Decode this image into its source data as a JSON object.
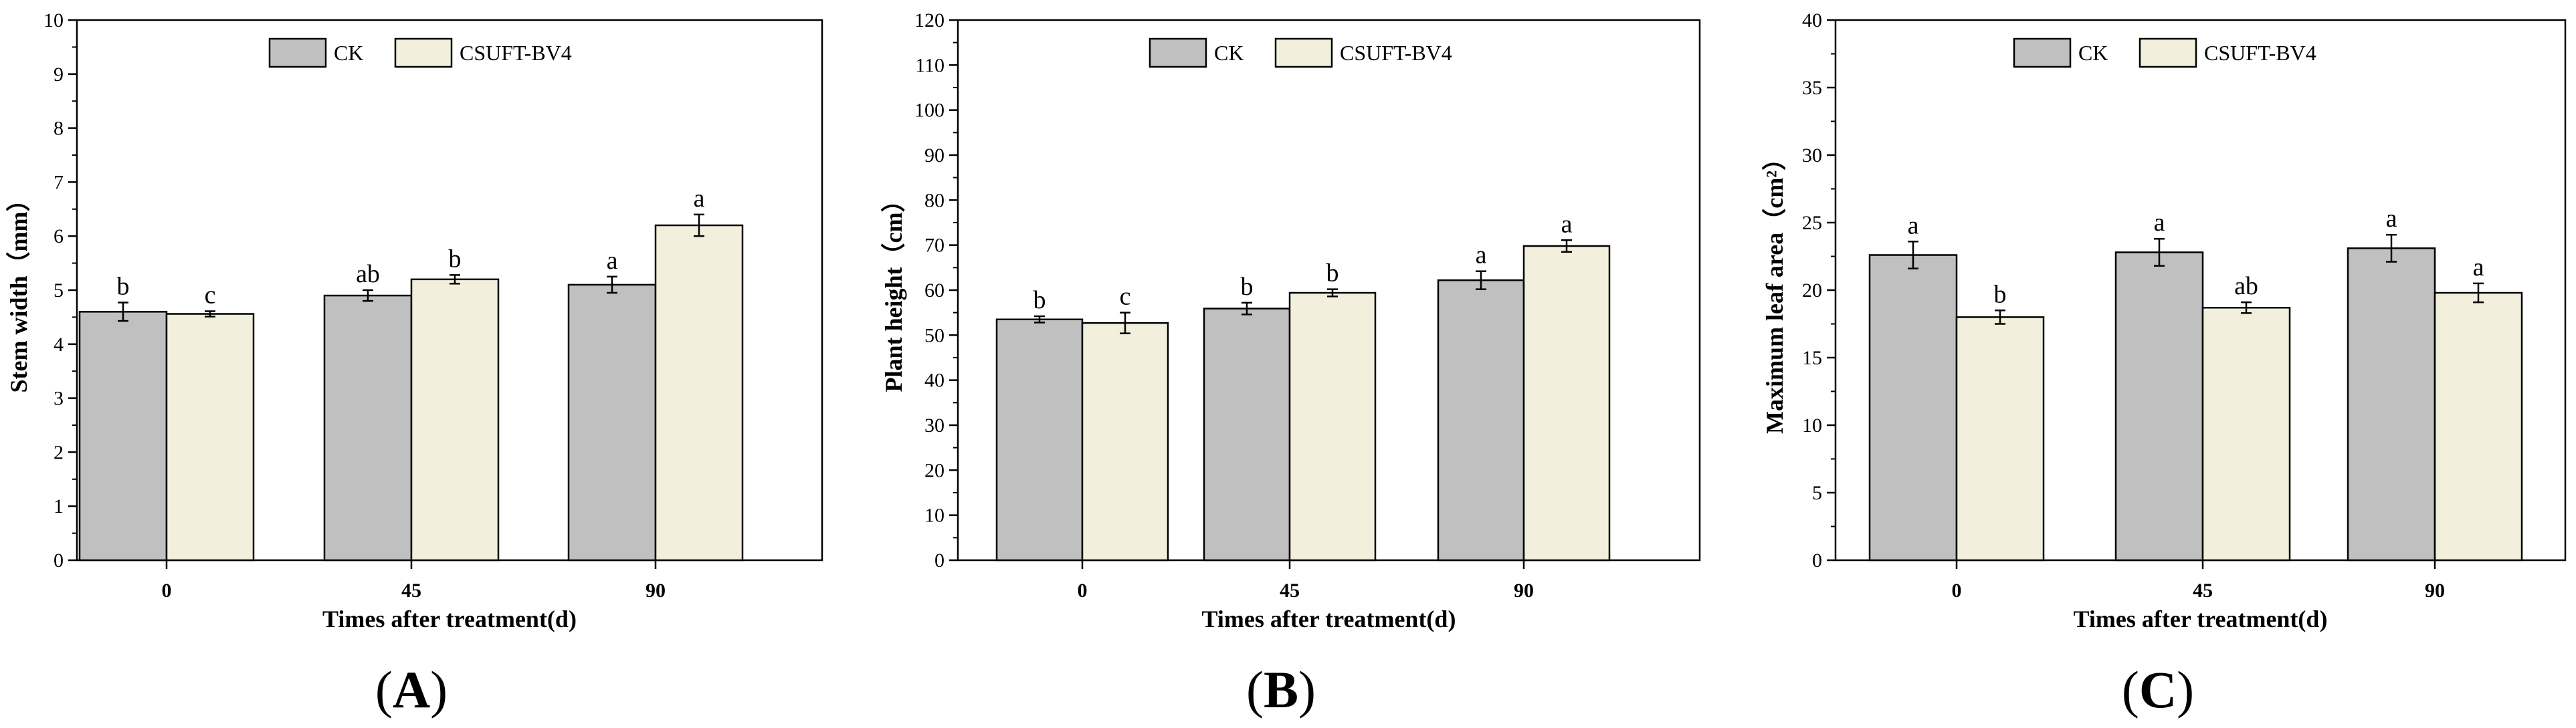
{
  "colors": {
    "ck": "#c0c0c0",
    "bv4": "#f2efdd",
    "stroke": "#000000"
  },
  "legend_labels": [
    "CK",
    "CSUFT-BV4"
  ],
  "panels": [
    {
      "label": "A",
      "chart_data": {
        "type": "bar",
        "categories": [
          "0",
          "45",
          "90"
        ],
        "xlabel": "Times after treatment(d)",
        "ylabel": "Stem width（mm）",
        "ylim": [
          0,
          10
        ],
        "yticks": [
          0,
          1,
          2,
          3,
          4,
          5,
          6,
          7,
          8,
          9,
          10
        ],
        "legend_position": "top-center",
        "series": [
          {
            "name": "CK",
            "values": [
              4.6,
              4.9,
              5.1
            ],
            "errors": [
              0.17,
              0.1,
              0.15
            ],
            "letters": [
              "b",
              "ab",
              "a"
            ]
          },
          {
            "name": "CSUFT-BV4",
            "values": [
              4.56,
              5.2,
              6.2
            ],
            "errors": [
              0.05,
              0.08,
              0.2
            ],
            "letters": [
              "c",
              "b",
              "a"
            ]
          }
        ]
      }
    },
    {
      "label": "B",
      "chart_data": {
        "type": "bar",
        "categories": [
          "0",
          "45",
          "90"
        ],
        "xlabel": "Times after treatment(d)",
        "ylabel": "Plant height（cm）",
        "ylim": [
          0,
          120
        ],
        "yticks": [
          0,
          10,
          20,
          30,
          40,
          50,
          60,
          70,
          80,
          90,
          100,
          110,
          120
        ],
        "legend_position": "top-center",
        "series": [
          {
            "name": "CK",
            "values": [
              53.5,
              55.9,
              62.2
            ],
            "errors": [
              0.7,
              1.3,
              2.0
            ],
            "letters": [
              "b",
              "b",
              "a"
            ]
          },
          {
            "name": "CSUFT-BV4",
            "values": [
              52.7,
              59.4,
              69.8
            ],
            "errors": [
              2.3,
              0.8,
              1.3
            ],
            "letters": [
              "c",
              "b",
              "a"
            ]
          }
        ]
      }
    },
    {
      "label": "C",
      "chart_data": {
        "type": "bar",
        "categories": [
          "0",
          "45",
          "90"
        ],
        "xlabel": "Times after treatment(d)",
        "ylabel": "Maximum leaf area（cm²）",
        "ylim": [
          0,
          40
        ],
        "yticks": [
          0,
          5,
          10,
          15,
          20,
          25,
          30,
          35,
          40
        ],
        "legend_position": "top-center",
        "series": [
          {
            "name": "CK",
            "values": [
              22.6,
              22.8,
              23.1
            ],
            "errors": [
              1.0,
              1.0,
              1.0
            ],
            "letters": [
              "a",
              "a",
              "a"
            ]
          },
          {
            "name": "CSUFT-BV4",
            "values": [
              18.0,
              18.7,
              19.8
            ],
            "errors": [
              0.5,
              0.4,
              0.7
            ],
            "letters": [
              "b",
              "ab",
              "a"
            ]
          }
        ]
      }
    }
  ]
}
